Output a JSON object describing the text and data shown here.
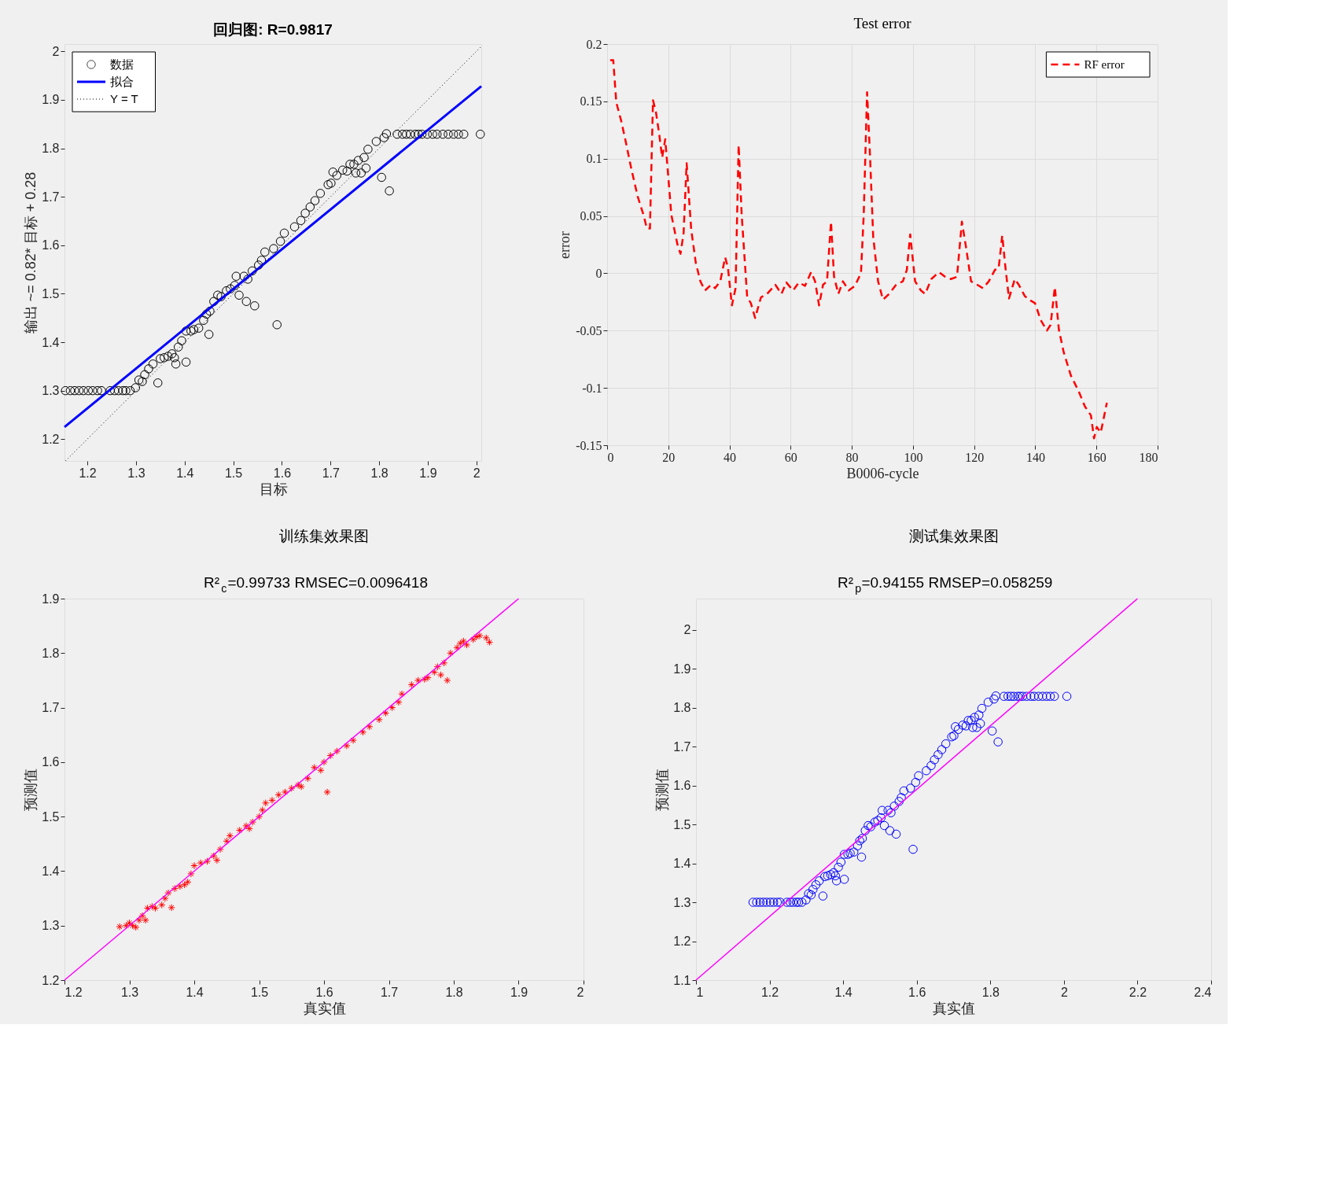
{
  "chart_data": [
    {
      "type": "scatter",
      "title": "回归图: R=0.9817",
      "xlabel": "目标",
      "ylabel": "输出 ~= 0.82* 目标 + 0.28",
      "xlim": [
        1.153,
        2.01
      ],
      "ylim": [
        1.155,
        2.015
      ],
      "xticks": [
        1.2,
        1.3,
        1.4,
        1.5,
        1.6,
        1.7,
        1.8,
        1.9,
        2
      ],
      "yticks": [
        1.2,
        1.3,
        1.4,
        1.5,
        1.6,
        1.7,
        1.8,
        1.9,
        2
      ],
      "grid": false,
      "legend": "top left",
      "series": [
        {
          "name": "数据",
          "marker": "circle",
          "color": "#000000",
          "x": [
            1.155,
            1.165,
            1.174,
            1.183,
            1.192,
            1.202,
            1.211,
            1.221,
            1.229,
            1.247,
            1.256,
            1.264,
            1.273,
            1.279,
            1.288,
            1.299,
            1.306,
            1.313,
            1.318,
            1.326,
            1.335,
            1.345,
            1.35,
            1.358,
            1.366,
            1.374,
            1.379,
            1.382,
            1.387,
            1.394,
            1.403,
            1.403,
            1.413,
            1.419,
            1.429,
            1.439,
            1.445,
            1.45,
            1.452,
            1.46,
            1.468,
            1.475,
            1.486,
            1.494,
            1.503,
            1.506,
            1.512,
            1.522,
            1.527,
            1.53,
            1.539,
            1.544,
            1.552,
            1.558,
            1.565,
            1.583,
            1.59,
            1.597,
            1.605,
            1.626,
            1.639,
            1.648,
            1.658,
            1.668,
            1.679,
            1.695,
            1.701,
            1.705,
            1.713,
            1.725,
            1.734,
            1.74,
            1.748,
            1.752,
            1.757,
            1.763,
            1.769,
            1.773,
            1.777,
            1.794,
            1.805,
            1.81,
            1.815,
            1.821,
            1.837,
            1.848,
            1.856,
            1.864,
            1.874,
            1.881,
            1.888,
            1.899,
            1.91,
            1.919,
            1.931,
            1.942,
            1.953,
            1.963,
            1.974,
            2.008
          ],
          "values": [
            1.3,
            1.3,
            1.3,
            1.3,
            1.3,
            1.3,
            1.3,
            1.3,
            1.3,
            1.3,
            1.3,
            1.3,
            1.3,
            1.3,
            1.3,
            1.306,
            1.322,
            1.319,
            1.333,
            1.345,
            1.355,
            1.316,
            1.366,
            1.368,
            1.371,
            1.376,
            1.368,
            1.355,
            1.39,
            1.403,
            1.359,
            1.423,
            1.423,
            1.426,
            1.429,
            1.445,
            1.458,
            1.416,
            1.464,
            1.484,
            1.497,
            1.494,
            1.506,
            1.51,
            1.517,
            1.536,
            1.497,
            1.536,
            1.484,
            1.53,
            1.547,
            1.475,
            1.559,
            1.569,
            1.586,
            1.593,
            1.436,
            1.608,
            1.625,
            1.638,
            1.651,
            1.666,
            1.679,
            1.692,
            1.707,
            1.725,
            1.728,
            1.751,
            1.744,
            1.755,
            1.753,
            1.767,
            1.767,
            1.749,
            1.775,
            1.749,
            1.781,
            1.759,
            1.798,
            1.814,
            1.74,
            1.822,
            1.83,
            1.712,
            1.829,
            1.829,
            1.829,
            1.829,
            1.829,
            1.829,
            1.829,
            1.829,
            1.829,
            1.829,
            1.829,
            1.829,
            1.829,
            1.829,
            1.829,
            1.829
          ]
        },
        {
          "name": "拟合",
          "type": "line",
          "color": "#0000ff",
          "x": [
            1.153,
            2.01
          ],
          "values": [
            1.225,
            1.928
          ]
        },
        {
          "name": "Y = T",
          "type": "line",
          "color": "#000000",
          "line_style": "dotted",
          "x": [
            1.155,
            2.01
          ],
          "values": [
            1.155,
            2.01
          ]
        }
      ]
    },
    {
      "type": "line",
      "title": "Test error",
      "xlabel": "B0006-cycle",
      "ylabel": "error",
      "xlim": [
        0,
        180
      ],
      "ylim": [
        -0.15,
        0.2
      ],
      "xticks": [
        0,
        20,
        40,
        60,
        80,
        100,
        120,
        140,
        160,
        180
      ],
      "yticks": [
        -0.15,
        -0.1,
        -0.05,
        0,
        0.05,
        0.1,
        0.15,
        0.2
      ],
      "grid": true,
      "legend": "top right",
      "series": [
        {
          "name": "RF error",
          "color": "#ff0000",
          "line_style": "dashed",
          "x": [
            1,
            2,
            3,
            4.6,
            6,
            8,
            10,
            12,
            13,
            14,
            15,
            16,
            17,
            18,
            19,
            21,
            23,
            24,
            25,
            26,
            27.5,
            29,
            30.5,
            32,
            34,
            35.3,
            37,
            38.6,
            39.5,
            40.8,
            42,
            43,
            44,
            45.8,
            47,
            48.4,
            50.3,
            52.3,
            55,
            57,
            58.6,
            60.8,
            62.7,
            64.7,
            66.7,
            68,
            69.3,
            70.6,
            71.9,
            73.2,
            74.2,
            75.6,
            77.1,
            79,
            81,
            83,
            83.9,
            85,
            86,
            87,
            88.6,
            90.2,
            92.2,
            94.5,
            96.7,
            98,
            99.1,
            100.7,
            102.6,
            104,
            106,
            108.5,
            110.5,
            112.4,
            114.4,
            116,
            117.4,
            119,
            121,
            122.9,
            124.8,
            126.8,
            128,
            129.2,
            130.2,
            131.4,
            133.3,
            134.6,
            136.6,
            138.6,
            139.9,
            141.8,
            143.8,
            145,
            146.4,
            147.7,
            149.3,
            151.6,
            154.2,
            156.2,
            158.2,
            159.2,
            160.1,
            161.4,
            163.4
          ],
          "values": [
            0.186,
            0.186,
            0.149,
            0.133,
            0.116,
            0.09,
            0.067,
            0.05,
            0.039,
            0.039,
            0.151,
            0.14,
            0.122,
            0.101,
            0.117,
            0.051,
            0.025,
            0.017,
            0.035,
            0.096,
            0.038,
            0.009,
            -0.007,
            -0.015,
            -0.01,
            -0.013,
            -0.007,
            0.014,
            0.005,
            -0.028,
            -0.013,
            0.112,
            0.051,
            -0.021,
            -0.026,
            -0.039,
            -0.021,
            -0.018,
            -0.01,
            -0.018,
            -0.008,
            -0.015,
            -0.008,
            -0.011,
            0.001,
            -0.007,
            -0.028,
            -0.01,
            -0.007,
            0.045,
            -0.003,
            -0.018,
            -0.007,
            -0.015,
            -0.011,
            0,
            0.051,
            0.158,
            0.1,
            0.032,
            -0.007,
            -0.023,
            -0.018,
            -0.01,
            -0.007,
            0.003,
            0.034,
            -0.007,
            -0.015,
            -0.018,
            -0.005,
            0.001,
            -0.003,
            -0.005,
            -0.003,
            0.045,
            0.022,
            -0.007,
            -0.01,
            -0.013,
            -0.007,
            0.003,
            0.004,
            0.033,
            0.006,
            -0.022,
            -0.005,
            -0.01,
            -0.02,
            -0.024,
            -0.026,
            -0.041,
            -0.05,
            -0.045,
            -0.012,
            -0.049,
            -0.069,
            -0.089,
            -0.103,
            -0.116,
            -0.124,
            -0.144,
            -0.134,
            -0.139,
            -0.113
          ]
        }
      ]
    },
    {
      "type": "scatter",
      "title": "训练集效果图",
      "subtitle": "R²$_{c}$=0.99733  RMSEC=0.0096418",
      "xlabel": "真实值",
      "ylabel": "预测值",
      "xlim": [
        1.2,
        2
      ],
      "ylim": [
        1.2,
        1.9
      ],
      "xticks": [
        1.2,
        1.3,
        1.4,
        1.5,
        1.6,
        1.7,
        1.8,
        1.9,
        2
      ],
      "yticks": [
        1.2,
        1.3,
        1.4,
        1.5,
        1.6,
        1.7,
        1.8,
        1.9
      ],
      "grid": false,
      "series": [
        {
          "marker": "cross",
          "color": "#ff0000",
          "x": [
            1.285,
            1.295,
            1.3,
            1.305,
            1.31,
            1.315,
            1.32,
            1.325,
            1.328,
            1.335,
            1.34,
            1.35,
            1.355,
            1.36,
            1.365,
            1.37,
            1.378,
            1.385,
            1.39,
            1.395,
            1.4,
            1.41,
            1.42,
            1.43,
            1.435,
            1.44,
            1.45,
            1.455,
            1.47,
            1.48,
            1.485,
            1.49,
            1.5,
            1.505,
            1.51,
            1.52,
            1.53,
            1.54,
            1.55,
            1.56,
            1.565,
            1.575,
            1.585,
            1.595,
            1.6,
            1.605,
            1.61,
            1.62,
            1.635,
            1.645,
            1.66,
            1.67,
            1.685,
            1.695,
            1.705,
            1.715,
            1.72,
            1.735,
            1.745,
            1.755,
            1.76,
            1.77,
            1.775,
            1.78,
            1.79,
            1.785,
            1.795,
            1.805,
            1.81,
            1.815,
            1.82,
            1.83,
            1.835,
            1.84,
            1.85,
            1.855
          ],
          "values": [
            1.298,
            1.3,
            1.305,
            1.3,
            1.297,
            1.31,
            1.318,
            1.31,
            1.332,
            1.335,
            1.332,
            1.338,
            1.35,
            1.36,
            1.333,
            1.368,
            1.372,
            1.375,
            1.38,
            1.395,
            1.41,
            1.415,
            1.418,
            1.428,
            1.42,
            1.44,
            1.455,
            1.465,
            1.475,
            1.483,
            1.478,
            1.49,
            1.5,
            1.512,
            1.525,
            1.53,
            1.54,
            1.545,
            1.552,
            1.558,
            1.555,
            1.57,
            1.59,
            1.585,
            1.6,
            1.545,
            1.612,
            1.62,
            1.63,
            1.64,
            1.655,
            1.665,
            1.678,
            1.69,
            1.7,
            1.71,
            1.725,
            1.742,
            1.75,
            1.752,
            1.755,
            1.765,
            1.775,
            1.76,
            1.75,
            1.782,
            1.8,
            1.81,
            1.818,
            1.822,
            1.815,
            1.825,
            1.83,
            1.832,
            1.828,
            1.82
          ]
        },
        {
          "type": "line",
          "color": "#ff00ff",
          "x": [
            1.2,
            1.9
          ],
          "values": [
            1.2,
            1.9
          ]
        }
      ]
    },
    {
      "type": "scatter",
      "title": "测试集效果图",
      "subtitle": "R²$_{p}$=0.94155  RMSEP=0.058259",
      "xlabel": "真实值",
      "ylabel": "预测值",
      "xlim": [
        1,
        2.4
      ],
      "ylim": [
        1.1,
        2.08
      ],
      "xticks": [
        1,
        1.2,
        1.4,
        1.6,
        1.8,
        2,
        2.2,
        2.4
      ],
      "yticks": [
        1.1,
        1.2,
        1.3,
        1.4,
        1.5,
        1.6,
        1.7,
        1.8,
        1.9,
        2
      ],
      "grid": false,
      "series": [
        {
          "marker": "circle",
          "color": "#0000ff",
          "x": [
            1.155,
            1.165,
            1.174,
            1.183,
            1.192,
            1.202,
            1.211,
            1.221,
            1.229,
            1.247,
            1.256,
            1.264,
            1.273,
            1.279,
            1.288,
            1.299,
            1.306,
            1.313,
            1.318,
            1.326,
            1.335,
            1.345,
            1.35,
            1.358,
            1.366,
            1.374,
            1.379,
            1.382,
            1.387,
            1.394,
            1.403,
            1.403,
            1.413,
            1.419,
            1.429,
            1.439,
            1.445,
            1.45,
            1.452,
            1.46,
            1.468,
            1.475,
            1.486,
            1.494,
            1.503,
            1.506,
            1.512,
            1.522,
            1.527,
            1.53,
            1.539,
            1.544,
            1.552,
            1.558,
            1.565,
            1.583,
            1.59,
            1.597,
            1.605,
            1.626,
            1.639,
            1.648,
            1.658,
            1.668,
            1.679,
            1.695,
            1.701,
            1.705,
            1.713,
            1.725,
            1.734,
            1.74,
            1.748,
            1.752,
            1.757,
            1.763,
            1.769,
            1.773,
            1.777,
            1.794,
            1.805,
            1.81,
            1.815,
            1.821,
            1.837,
            1.848,
            1.856,
            1.864,
            1.874,
            1.881,
            1.888,
            1.899,
            1.91,
            1.919,
            1.931,
            1.942,
            1.953,
            1.963,
            1.974,
            2.008
          ],
          "values": [
            1.3,
            1.3,
            1.3,
            1.3,
            1.3,
            1.3,
            1.3,
            1.3,
            1.3,
            1.3,
            1.3,
            1.3,
            1.3,
            1.3,
            1.3,
            1.306,
            1.322,
            1.319,
            1.333,
            1.345,
            1.355,
            1.316,
            1.366,
            1.368,
            1.371,
            1.376,
            1.368,
            1.355,
            1.39,
            1.403,
            1.359,
            1.423,
            1.423,
            1.426,
            1.429,
            1.445,
            1.458,
            1.416,
            1.464,
            1.484,
            1.497,
            1.494,
            1.506,
            1.51,
            1.517,
            1.536,
            1.497,
            1.536,
            1.484,
            1.53,
            1.547,
            1.475,
            1.559,
            1.569,
            1.586,
            1.593,
            1.436,
            1.608,
            1.625,
            1.638,
            1.651,
            1.666,
            1.679,
            1.692,
            1.707,
            1.725,
            1.728,
            1.751,
            1.744,
            1.755,
            1.753,
            1.767,
            1.767,
            1.749,
            1.775,
            1.749,
            1.781,
            1.759,
            1.798,
            1.814,
            1.74,
            1.822,
            1.83,
            1.712,
            1.829,
            1.829,
            1.829,
            1.829,
            1.829,
            1.829,
            1.829,
            1.829,
            1.829,
            1.829,
            1.829,
            1.829,
            1.829,
            1.829,
            1.829,
            1.829
          ]
        },
        {
          "type": "line",
          "color": "#ff00ff",
          "x": [
            1,
            2.2
          ],
          "values": [
            1.1,
            2.08
          ]
        }
      ]
    }
  ]
}
